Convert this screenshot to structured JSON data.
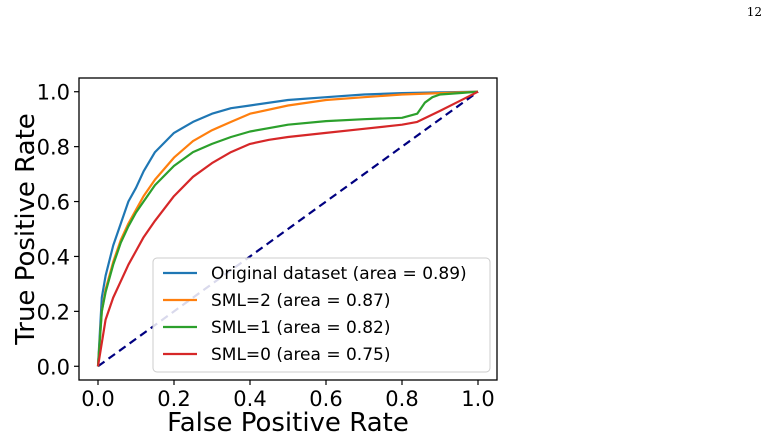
{
  "page_number": "12",
  "chart_data": {
    "type": "line",
    "title": "",
    "xlabel": "False Positive Rate",
    "ylabel": "True Positive Rate",
    "xlim": [
      -0.05,
      1.05
    ],
    "ylim": [
      -0.05,
      1.05
    ],
    "xticks": [
      0.0,
      0.2,
      0.4,
      0.6,
      0.8,
      1.0
    ],
    "yticks": [
      0.0,
      0.2,
      0.4,
      0.6,
      0.8,
      1.0
    ],
    "xtick_labels": [
      "0.0",
      "0.2",
      "0.4",
      "0.6",
      "0.8",
      "1.0"
    ],
    "ytick_labels": [
      "0.0",
      "0.2",
      "0.4",
      "0.6",
      "0.8",
      "1.0"
    ],
    "grid": false,
    "legend": "lower-right",
    "series": [
      {
        "name": "Original dataset (area = 0.89)",
        "color": "#1f77b4",
        "x": [
          0.0,
          0.01,
          0.02,
          0.04,
          0.06,
          0.08,
          0.1,
          0.12,
          0.15,
          0.2,
          0.25,
          0.3,
          0.35,
          0.4,
          0.5,
          0.6,
          0.7,
          0.8,
          0.9,
          1.0
        ],
        "y": [
          0.0,
          0.25,
          0.33,
          0.44,
          0.52,
          0.6,
          0.65,
          0.71,
          0.78,
          0.85,
          0.89,
          0.92,
          0.94,
          0.95,
          0.97,
          0.98,
          0.99,
          0.995,
          0.998,
          1.0
        ]
      },
      {
        "name": "SML=2 (area = 0.87)",
        "color": "#ff7f0e",
        "x": [
          0.0,
          0.01,
          0.02,
          0.04,
          0.06,
          0.08,
          0.1,
          0.12,
          0.15,
          0.2,
          0.25,
          0.3,
          0.35,
          0.4,
          0.5,
          0.6,
          0.7,
          0.8,
          0.9,
          1.0
        ],
        "y": [
          0.0,
          0.2,
          0.28,
          0.38,
          0.46,
          0.52,
          0.57,
          0.62,
          0.68,
          0.76,
          0.82,
          0.86,
          0.89,
          0.92,
          0.95,
          0.97,
          0.98,
          0.99,
          0.995,
          1.0
        ]
      },
      {
        "name": "SML=1 (area = 0.82)",
        "color": "#2ca02c",
        "x": [
          0.0,
          0.01,
          0.02,
          0.04,
          0.06,
          0.08,
          0.1,
          0.12,
          0.15,
          0.2,
          0.25,
          0.3,
          0.35,
          0.4,
          0.5,
          0.6,
          0.7,
          0.8,
          0.84,
          0.86,
          0.88,
          0.9,
          0.95,
          1.0
        ],
        "y": [
          0.0,
          0.2,
          0.27,
          0.37,
          0.45,
          0.51,
          0.56,
          0.6,
          0.66,
          0.73,
          0.78,
          0.81,
          0.835,
          0.855,
          0.88,
          0.893,
          0.9,
          0.905,
          0.92,
          0.96,
          0.98,
          0.99,
          0.995,
          1.0
        ]
      },
      {
        "name": "SML=0 (area = 0.75)",
        "color": "#d62728",
        "x": [
          0.0,
          0.02,
          0.04,
          0.06,
          0.08,
          0.1,
          0.12,
          0.15,
          0.2,
          0.25,
          0.3,
          0.35,
          0.4,
          0.45,
          0.5,
          0.6,
          0.7,
          0.8,
          0.84,
          0.9,
          0.95,
          1.0
        ],
        "y": [
          0.0,
          0.17,
          0.25,
          0.31,
          0.37,
          0.42,
          0.47,
          0.53,
          0.62,
          0.69,
          0.74,
          0.78,
          0.81,
          0.825,
          0.835,
          0.85,
          0.865,
          0.88,
          0.89,
          0.93,
          0.965,
          1.0
        ]
      }
    ],
    "reference_line": {
      "style": "dashed",
      "color": "#000080",
      "x": [
        0.0,
        1.0
      ],
      "y": [
        0.0,
        1.0
      ]
    }
  }
}
